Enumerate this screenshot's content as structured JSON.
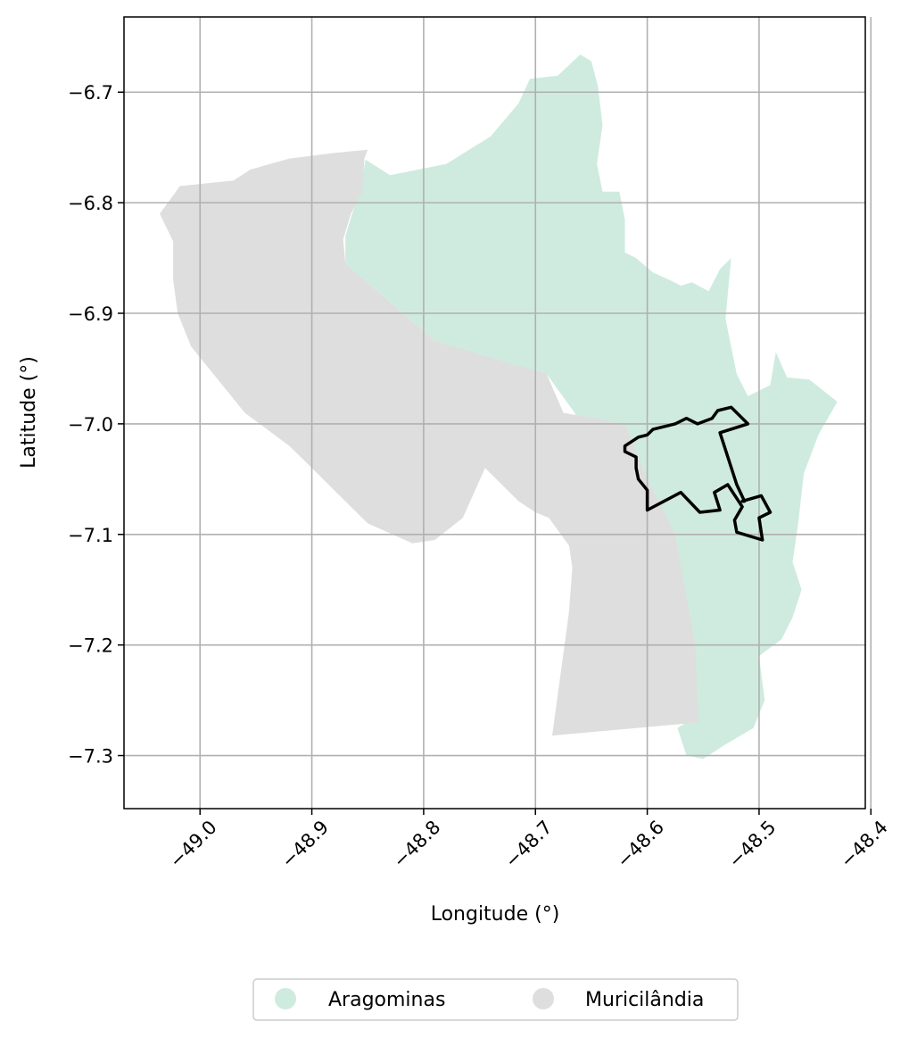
{
  "chart_data": {
    "type": "map",
    "xlabel": "Longitude (°)",
    "ylabel": "Latitude (°)",
    "xlim": [
      -49.068,
      -48.405
    ],
    "ylim": [
      -7.348,
      -6.632
    ],
    "grid": true,
    "x_ticks": [
      -49.0,
      -48.9,
      -48.8,
      -48.7,
      -48.6,
      -48.5,
      -48.4
    ],
    "x_tick_labels": [
      "−49.0",
      "−48.9",
      "−48.8",
      "−48.7",
      "−48.6",
      "−48.5",
      "−48.4"
    ],
    "y_ticks": [
      -6.7,
      -6.8,
      -6.9,
      -7.0,
      -7.1,
      -7.2,
      -7.3
    ],
    "y_tick_labels": [
      "−6.7",
      "−6.8",
      "−6.9",
      "−7.0",
      "−7.1",
      "−7.2",
      "−7.3"
    ],
    "legend_position": "bottom-center",
    "regions": [
      {
        "name": "Aragominas",
        "color": "#cfebdf",
        "polygon": [
          [
            -48.852,
            -6.761
          ],
          [
            -48.83,
            -6.775
          ],
          [
            -48.78,
            -6.765
          ],
          [
            -48.74,
            -6.74
          ],
          [
            -48.715,
            -6.71
          ],
          [
            -48.705,
            -6.688
          ],
          [
            -48.68,
            -6.685
          ],
          [
            -48.66,
            -6.666
          ],
          [
            -48.65,
            -6.672
          ],
          [
            -48.644,
            -6.695
          ],
          [
            -48.64,
            -6.73
          ],
          [
            -48.645,
            -6.765
          ],
          [
            -48.64,
            -6.79
          ],
          [
            -48.625,
            -6.79
          ],
          [
            -48.62,
            -6.815
          ],
          [
            -48.62,
            -6.845
          ],
          [
            -48.61,
            -6.85
          ],
          [
            -48.595,
            -6.863
          ],
          [
            -48.58,
            -6.87
          ],
          [
            -48.57,
            -6.875
          ],
          [
            -48.56,
            -6.872
          ],
          [
            -48.545,
            -6.88
          ],
          [
            -48.535,
            -6.86
          ],
          [
            -48.525,
            -6.85
          ],
          [
            -48.53,
            -6.905
          ],
          [
            -48.52,
            -6.955
          ],
          [
            -48.51,
            -6.975
          ],
          [
            -48.49,
            -6.965
          ],
          [
            -48.485,
            -6.935
          ],
          [
            -48.475,
            -6.958
          ],
          [
            -48.455,
            -6.96
          ],
          [
            -48.43,
            -6.98
          ],
          [
            -48.447,
            -7.01
          ],
          [
            -48.46,
            -7.045
          ],
          [
            -48.465,
            -7.09
          ],
          [
            -48.47,
            -7.125
          ],
          [
            -48.462,
            -7.15
          ],
          [
            -48.47,
            -7.175
          ],
          [
            -48.48,
            -7.195
          ],
          [
            -48.5,
            -7.21
          ],
          [
            -48.495,
            -7.25
          ],
          [
            -48.505,
            -7.275
          ],
          [
            -48.53,
            -7.29
          ],
          [
            -48.55,
            -7.303
          ],
          [
            -48.565,
            -7.3
          ],
          [
            -48.573,
            -7.275
          ],
          [
            -48.565,
            -7.27
          ],
          [
            -48.56,
            -7.2
          ],
          [
            -48.575,
            -7.13
          ],
          [
            -48.59,
            -7.1
          ],
          [
            -48.62,
            -7.07
          ],
          [
            -48.65,
            -7.02
          ],
          [
            -48.665,
            -6.99
          ],
          [
            -48.69,
            -6.955
          ],
          [
            -48.72,
            -6.97
          ],
          [
            -48.79,
            -6.925
          ],
          [
            -48.87,
            -6.855
          ],
          [
            -48.87,
            -6.83
          ],
          [
            -48.864,
            -6.81
          ],
          [
            -48.857,
            -6.79
          ]
        ]
      },
      {
        "name": "Muricilândia",
        "color": "#dedede",
        "polygon": [
          [
            -49.036,
            -6.81
          ],
          [
            -49.018,
            -6.785
          ],
          [
            -49.0,
            -6.783
          ],
          [
            -48.97,
            -6.78
          ],
          [
            -48.955,
            -6.77
          ],
          [
            -48.92,
            -6.76
          ],
          [
            -48.88,
            -6.755
          ],
          [
            -48.85,
            -6.752
          ],
          [
            -48.853,
            -6.76
          ],
          [
            -48.855,
            -6.79
          ],
          [
            -48.865,
            -6.81
          ],
          [
            -48.872,
            -6.833
          ],
          [
            -48.87,
            -6.855
          ],
          [
            -48.79,
            -6.925
          ],
          [
            -48.69,
            -6.955
          ],
          [
            -48.675,
            -6.99
          ],
          [
            -48.62,
            -7.0
          ],
          [
            -48.6,
            -7.05
          ],
          [
            -48.575,
            -7.1
          ],
          [
            -48.557,
            -7.2
          ],
          [
            -48.554,
            -7.27
          ],
          [
            -48.685,
            -7.282
          ],
          [
            -48.67,
            -7.17
          ],
          [
            -48.667,
            -7.13
          ],
          [
            -48.67,
            -7.11
          ],
          [
            -48.688,
            -7.085
          ],
          [
            -48.7,
            -7.08
          ],
          [
            -48.715,
            -7.07
          ],
          [
            -48.725,
            -7.06
          ],
          [
            -48.745,
            -7.04
          ],
          [
            -48.765,
            -7.085
          ],
          [
            -48.79,
            -7.105
          ],
          [
            -48.81,
            -7.108
          ],
          [
            -48.85,
            -7.09
          ],
          [
            -48.88,
            -7.06
          ],
          [
            -48.9,
            -7.04
          ],
          [
            -48.92,
            -7.02
          ],
          [
            -48.96,
            -6.99
          ],
          [
            -48.98,
            -6.965
          ],
          [
            -49.008,
            -6.93
          ],
          [
            -49.02,
            -6.9
          ],
          [
            -49.024,
            -6.87
          ],
          [
            -49.024,
            -6.835
          ]
        ]
      }
    ],
    "outline": {
      "color": "#000000",
      "polygon": [
        [
          -48.62,
          -7.02
        ],
        [
          -48.608,
          -7.012
        ],
        [
          -48.6,
          -7.01
        ],
        [
          -48.595,
          -7.005
        ],
        [
          -48.575,
          -7.0
        ],
        [
          -48.565,
          -6.995
        ],
        [
          -48.555,
          -7.0
        ],
        [
          -48.542,
          -6.995
        ],
        [
          -48.537,
          -6.988
        ],
        [
          -48.525,
          -6.985
        ],
        [
          -48.51,
          -7.0
        ],
        [
          -48.535,
          -7.008
        ],
        [
          -48.52,
          -7.055
        ],
        [
          -48.513,
          -7.07
        ],
        [
          -48.515,
          -7.07
        ],
        [
          -48.498,
          -7.065
        ],
        [
          -48.49,
          -7.08
        ],
        [
          -48.5,
          -7.085
        ],
        [
          -48.497,
          -7.105
        ],
        [
          -48.52,
          -7.098
        ],
        [
          -48.522,
          -7.087
        ],
        [
          -48.515,
          -7.075
        ],
        [
          -48.528,
          -7.055
        ],
        [
          -48.54,
          -7.062
        ],
        [
          -48.535,
          -7.078
        ],
        [
          -48.553,
          -7.08
        ],
        [
          -48.57,
          -7.062
        ],
        [
          -48.6,
          -7.078
        ],
        [
          -48.6,
          -7.06
        ],
        [
          -48.608,
          -7.05
        ],
        [
          -48.61,
          -7.04
        ],
        [
          -48.61,
          -7.03
        ],
        [
          -48.62,
          -7.025
        ]
      ]
    },
    "legend": [
      {
        "label": "Aragominas",
        "color": "#cfebdf"
      },
      {
        "label": "Muricilândia",
        "color": "#dedede"
      }
    ]
  }
}
